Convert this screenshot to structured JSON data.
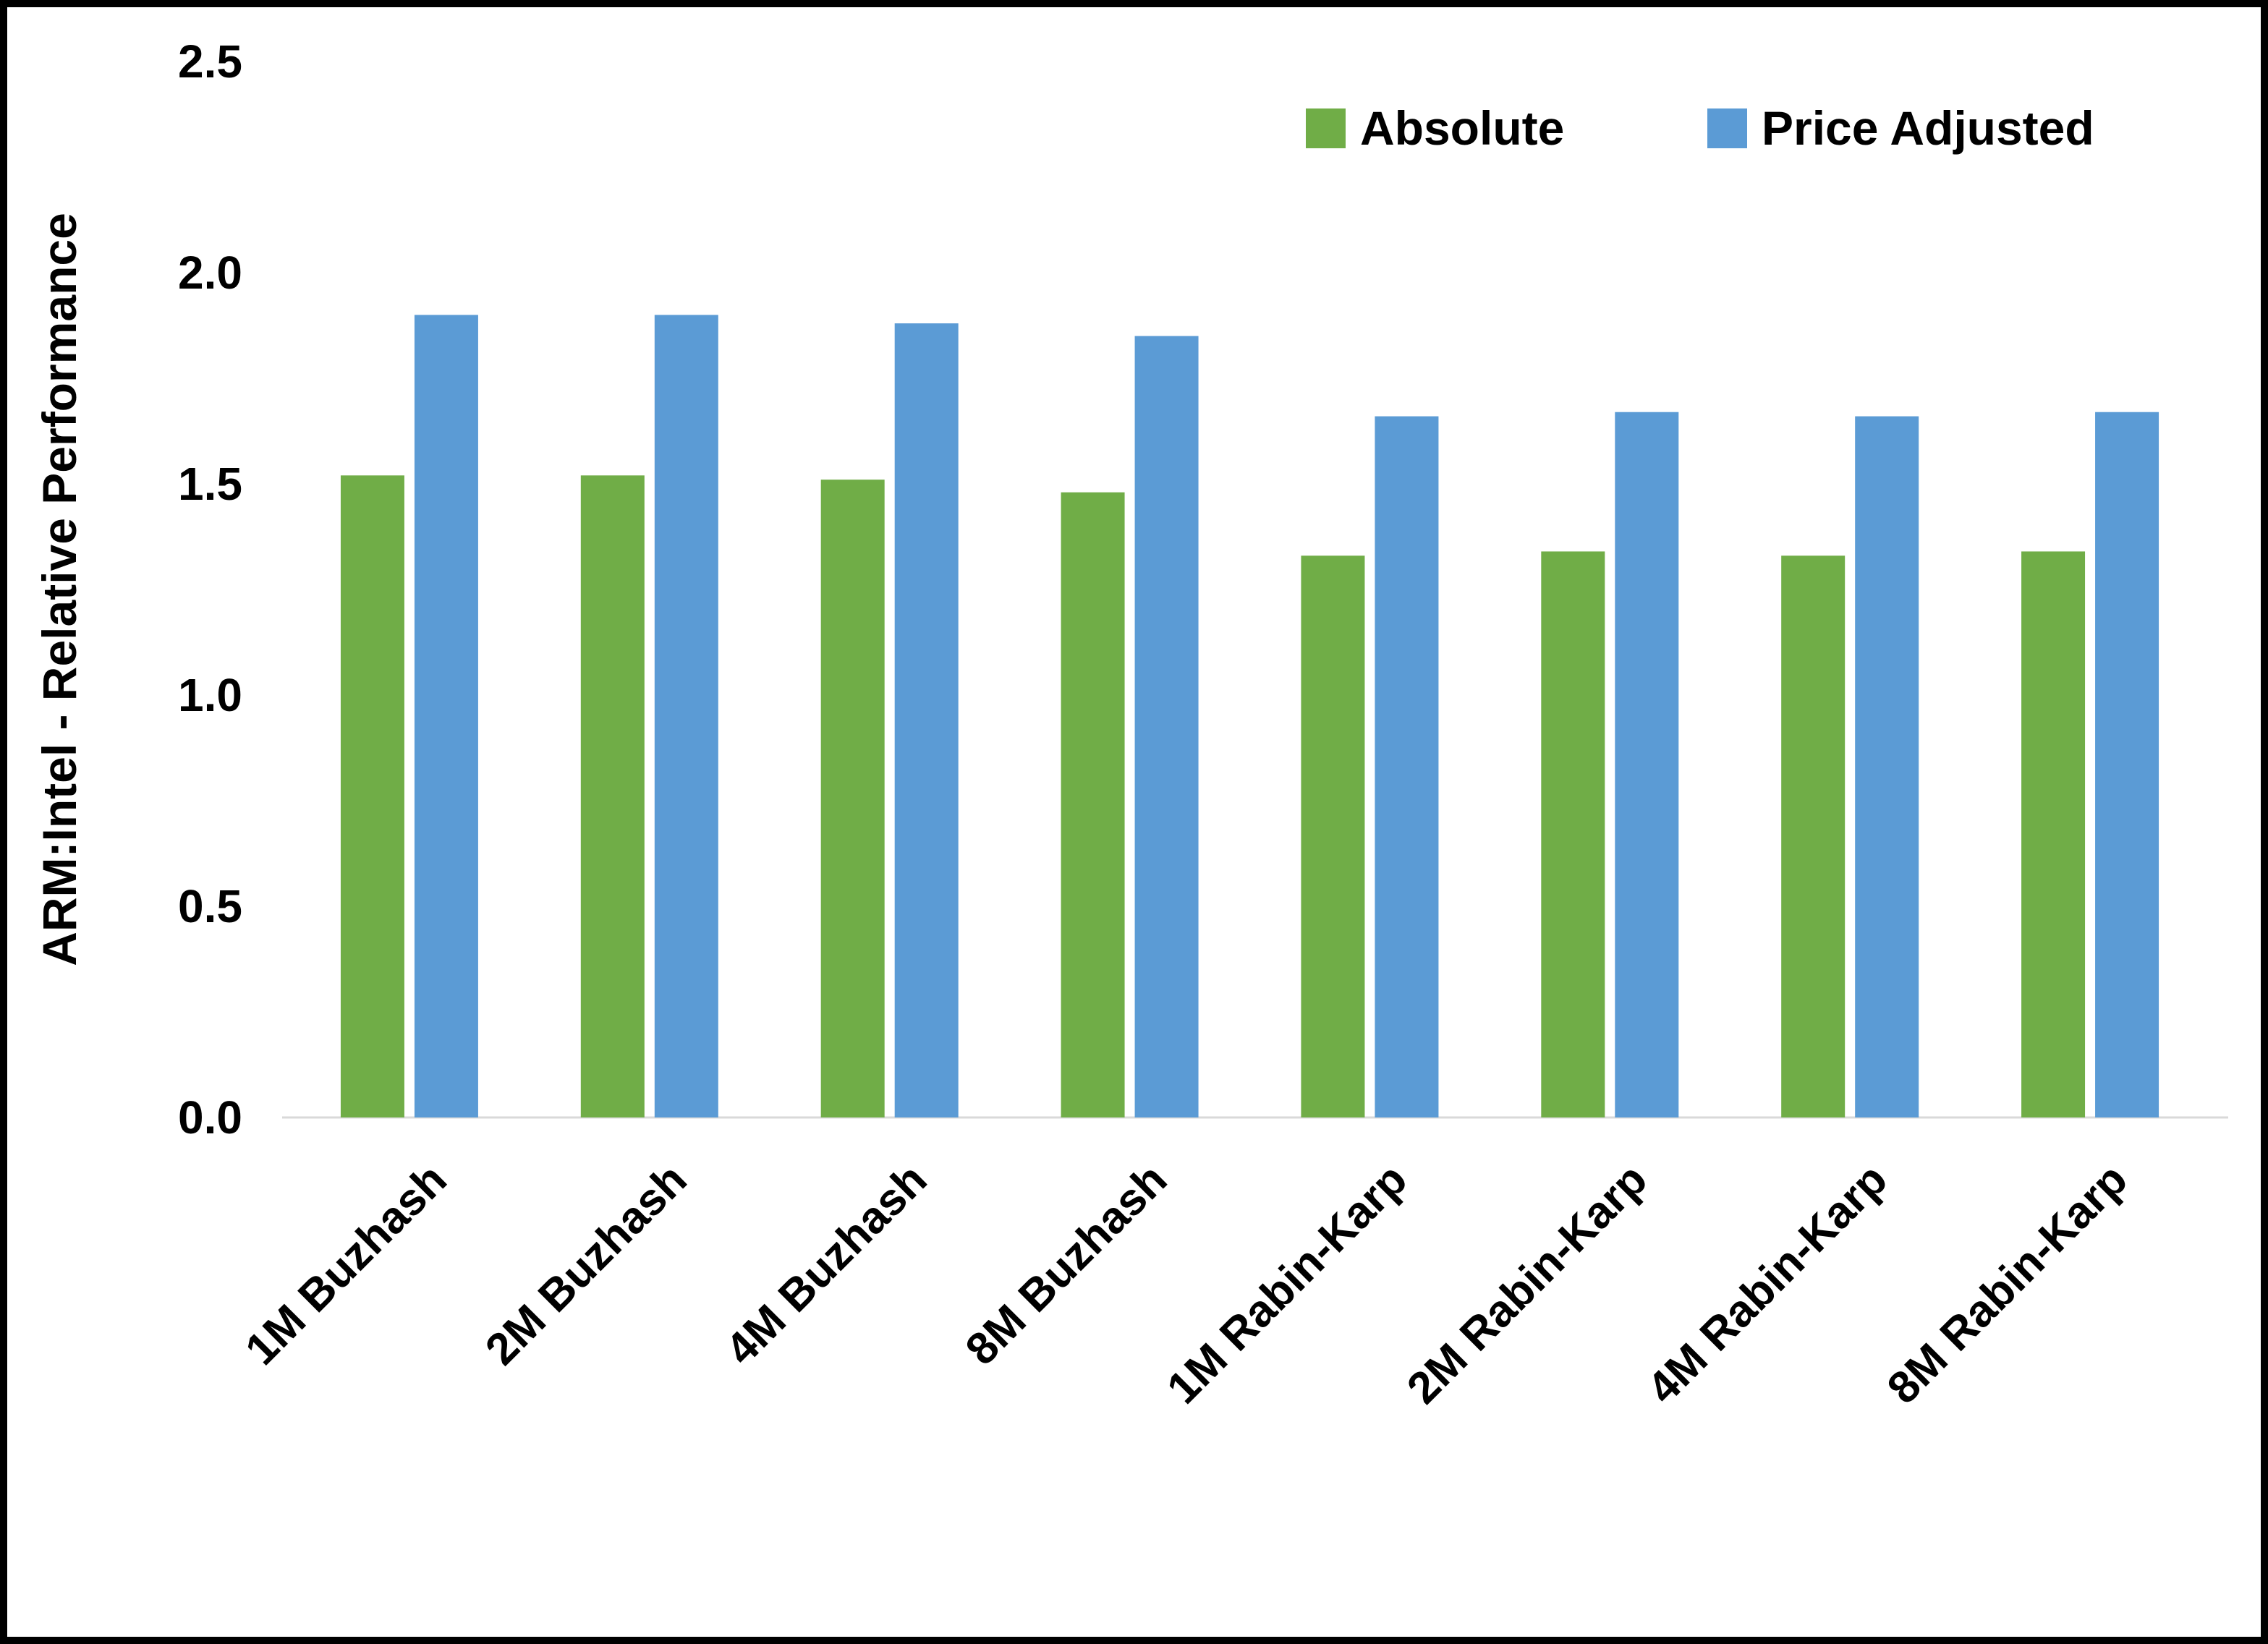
{
  "chart_data": {
    "type": "bar",
    "title": "",
    "xlabel": "",
    "ylabel": "ARM:Intel - Relative Performance",
    "ylim": [
      0,
      2.5
    ],
    "yticks": [
      0.0,
      0.5,
      1.0,
      1.5,
      2.0,
      2.5
    ],
    "grid": false,
    "legend_position": "top-right-inside",
    "categories": [
      "1M Buzhash",
      "2M Buzhash",
      "4M Buzhash",
      "8M Buzhash",
      "1M Rabin-Karp",
      "2M Rabin-Karp",
      "4M Rabin-Karp",
      "8M Rabin-Karp"
    ],
    "series": [
      {
        "name": "Absolute",
        "color": "#70AD47",
        "values": [
          1.52,
          1.52,
          1.51,
          1.48,
          1.33,
          1.34,
          1.33,
          1.34
        ]
      },
      {
        "name": "Price Adjusted",
        "color": "#5B9BD5",
        "values": [
          1.9,
          1.9,
          1.88,
          1.85,
          1.66,
          1.67,
          1.66,
          1.67
        ]
      }
    ],
    "colors": {
      "axis_line": "#d9d9d9",
      "text": "#000000",
      "background": "#ffffff",
      "border": "#000000"
    }
  }
}
